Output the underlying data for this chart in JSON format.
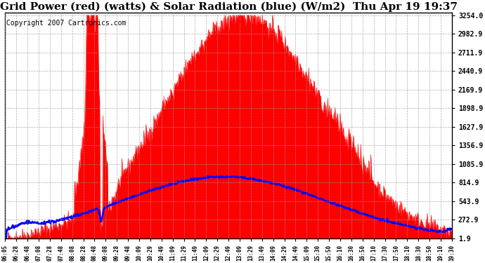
{
  "title": "Grid Power (red) (watts) & Solar Radiation (blue) (W/m2)  Thu Apr 19 19:37",
  "copyright": "Copyright 2007 Cartronics.com",
  "background_color": "#ffffff",
  "plot_bg_color": "#ffffff",
  "grid_color": "#aaaaaa",
  "ytick_labels": [
    "1.9",
    "272.9",
    "543.9",
    "814.9",
    "1085.9",
    "1356.9",
    "1627.9",
    "1898.9",
    "2169.9",
    "2440.9",
    "2711.9",
    "2982.9",
    "3254.0"
  ],
  "ytick_values": [
    1.9,
    272.9,
    543.9,
    814.9,
    1085.9,
    1356.9,
    1627.9,
    1898.9,
    2169.9,
    2440.9,
    2711.9,
    2982.9,
    3254.0
  ],
  "ymax": 3254.0,
  "ymin": 0,
  "red_color": "#ff0000",
  "blue_color": "#0000ff",
  "title_fontsize": 11,
  "copyright_fontsize": 7,
  "xtick_labels": [
    "06:05",
    "06:28",
    "06:48",
    "07:08",
    "07:28",
    "07:48",
    "08:08",
    "08:28",
    "08:48",
    "09:08",
    "09:28",
    "09:48",
    "10:09",
    "10:29",
    "10:49",
    "11:09",
    "11:29",
    "11:49",
    "12:09",
    "12:29",
    "12:49",
    "13:09",
    "13:29",
    "13:49",
    "14:09",
    "14:29",
    "14:49",
    "15:09",
    "15:30",
    "15:50",
    "16:10",
    "16:30",
    "16:50",
    "17:10",
    "17:30",
    "17:50",
    "18:10",
    "18:30",
    "18:50",
    "19:10",
    "19:30"
  ],
  "num_points": 800
}
